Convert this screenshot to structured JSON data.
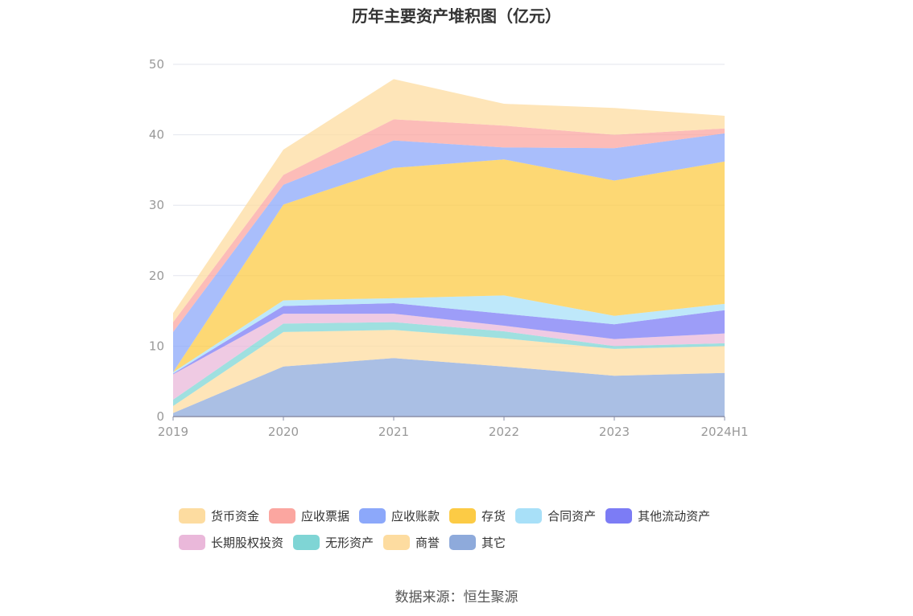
{
  "chart_data": {
    "type": "area",
    "stacked": true,
    "title": "历年主要资产堆积图（亿元）",
    "categories": [
      "2019",
      "2020",
      "2021",
      "2022",
      "2023",
      "2024H1"
    ],
    "ylim": [
      0,
      50
    ],
    "yticks": [
      0,
      10,
      20,
      30,
      40,
      50
    ],
    "grid": true,
    "legend_position": "bottom",
    "series": [
      {
        "name": "其它",
        "color": "#8eaadb",
        "values": [
          0.5,
          7.1,
          8.3,
          7.1,
          5.8,
          6.2
        ]
      },
      {
        "name": "商誉",
        "color": "#fddca0",
        "values": [
          1.0,
          4.9,
          4.0,
          4.0,
          3.8,
          3.8
        ]
      },
      {
        "name": "无形资产",
        "color": "#7fd5d5",
        "values": [
          0.9,
          1.2,
          1.1,
          1.0,
          0.4,
          0.4
        ]
      },
      {
        "name": "长期股权投资",
        "color": "#eab8da",
        "values": [
          3.6,
          1.4,
          1.2,
          0.8,
          1.0,
          1.4
        ]
      },
      {
        "name": "其他流动资产",
        "color": "#7c7cf5",
        "values": [
          0.1,
          1.1,
          1.5,
          1.7,
          2.1,
          3.3
        ]
      },
      {
        "name": "合同资产",
        "color": "#a8e0f8",
        "values": [
          0.2,
          0.8,
          0.7,
          2.6,
          1.2,
          0.9
        ]
      },
      {
        "name": "存货",
        "color": "#fccb45",
        "values": [
          0.0,
          13.6,
          18.5,
          19.3,
          19.2,
          20.2
        ]
      },
      {
        "name": "应收账款",
        "color": "#8ca8fa",
        "values": [
          5.7,
          2.8,
          3.9,
          1.7,
          4.6,
          4.0
        ]
      },
      {
        "name": "应收票据",
        "color": "#fba6a0",
        "values": [
          1.4,
          1.4,
          3.0,
          3.1,
          1.9,
          0.7
        ]
      },
      {
        "name": "货币资金",
        "color": "#fddca0",
        "values": [
          1.3,
          3.6,
          5.7,
          3.1,
          3.8,
          1.8
        ]
      }
    ],
    "legend_order": [
      "货币资金",
      "应收票据",
      "应收账款",
      "存货",
      "合同资产",
      "其他流动资产",
      "长期股权投资",
      "无形资产",
      "商誉",
      "其它"
    ]
  },
  "source": "数据来源：恒生聚源"
}
